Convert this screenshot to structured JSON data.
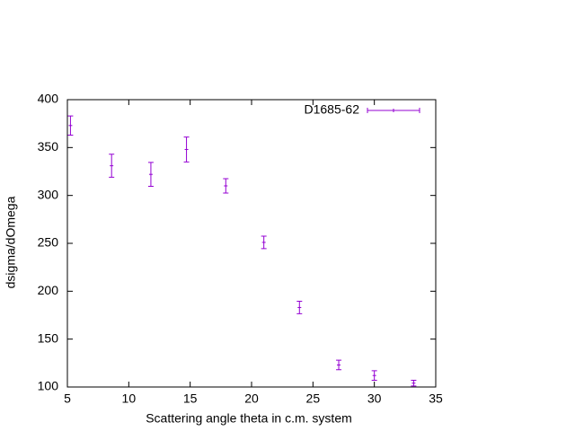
{
  "chart_data": {
    "type": "errorbar",
    "xlabel": "Scattering angle theta in c.m. system",
    "ylabel": "dsigma/dOmega",
    "x": [
      5.25,
      8.6,
      11.8,
      14.7,
      17.9,
      21.0,
      23.9,
      27.1,
      30.0,
      33.2
    ],
    "series": [
      {
        "name": "D1685-62",
        "color": "#9400d3",
        "values": [
          373,
          331,
          322,
          348,
          310,
          251,
          183,
          123,
          112,
          104
        ],
        "errors": [
          10,
          12,
          12.5,
          13,
          7.5,
          6.5,
          6.5,
          5,
          5,
          3
        ]
      }
    ],
    "xlim": [
      5,
      35
    ],
    "xticks": [
      5,
      10,
      15,
      20,
      25,
      30,
      35
    ],
    "ylim": [
      100,
      400
    ],
    "yticks": [
      100,
      150,
      200,
      250,
      300,
      350,
      400
    ],
    "legend": "top-right"
  }
}
